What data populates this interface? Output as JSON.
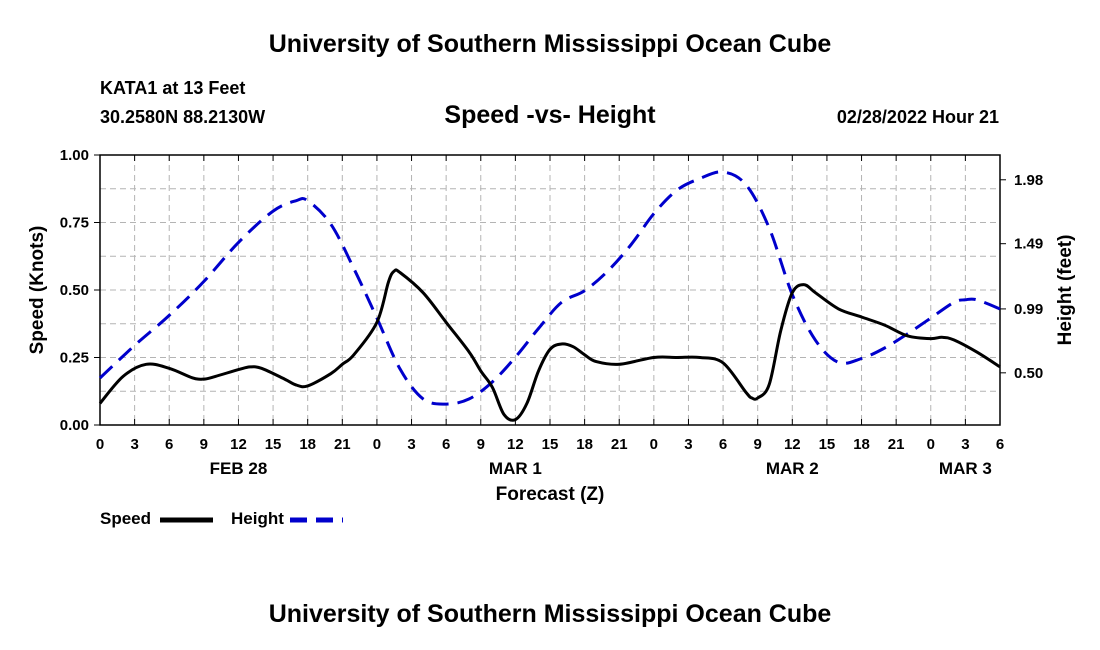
{
  "header": {
    "title": "University of Southern Mississippi Ocean Cube",
    "station": "KATA1 at 13 Feet",
    "coords": "30.2580N  88.2130W",
    "subtitle": "Speed -vs- Height",
    "datetime": "02/28/2022 Hour 21"
  },
  "footer": {
    "title": "University of Southern Mississippi Ocean Cube"
  },
  "colors": {
    "speed": "#000000",
    "height": "#0000cc",
    "grid": "#b4b4b4"
  },
  "chart_data": {
    "type": "line",
    "xlabel": "Forecast (Z)",
    "ylabel_left": "Speed (Knots)",
    "ylabel_right": "Height (feet)",
    "x_range_hours": [
      0,
      78
    ],
    "x_ticks": [
      {
        "h": 0,
        "label": "0"
      },
      {
        "h": 3,
        "label": "3"
      },
      {
        "h": 6,
        "label": "6"
      },
      {
        "h": 9,
        "label": "9"
      },
      {
        "h": 12,
        "label": "12"
      },
      {
        "h": 15,
        "label": "15"
      },
      {
        "h": 18,
        "label": "18"
      },
      {
        "h": 21,
        "label": "21"
      },
      {
        "h": 24,
        "label": "0"
      },
      {
        "h": 27,
        "label": "3"
      },
      {
        "h": 30,
        "label": "6"
      },
      {
        "h": 33,
        "label": "9"
      },
      {
        "h": 36,
        "label": "12"
      },
      {
        "h": 39,
        "label": "15"
      },
      {
        "h": 42,
        "label": "18"
      },
      {
        "h": 45,
        "label": "21"
      },
      {
        "h": 48,
        "label": "0"
      },
      {
        "h": 51,
        "label": "3"
      },
      {
        "h": 54,
        "label": "6"
      },
      {
        "h": 57,
        "label": "9"
      },
      {
        "h": 60,
        "label": "12"
      },
      {
        "h": 63,
        "label": "15"
      },
      {
        "h": 66,
        "label": "18"
      },
      {
        "h": 69,
        "label": "21"
      },
      {
        "h": 72,
        "label": "0"
      },
      {
        "h": 75,
        "label": "3"
      },
      {
        "h": 78,
        "label": "6"
      }
    ],
    "date_labels": [
      {
        "h": 12,
        "label": "FEB 28"
      },
      {
        "h": 36,
        "label": "MAR 1"
      },
      {
        "h": 60,
        "label": "MAR 2"
      },
      {
        "h": 75,
        "label": "MAR 3"
      }
    ],
    "y_left": {
      "min": 0,
      "max": 1,
      "ticks": [
        {
          "v": 0,
          "label": "0.00"
        },
        {
          "v": 0.25,
          "label": "0.25"
        },
        {
          "v": 0.5,
          "label": "0.50"
        },
        {
          "v": 0.75,
          "label": "0.75"
        },
        {
          "v": 1.0,
          "label": "1.00"
        }
      ]
    },
    "y_right": {
      "min": 0.1,
      "max": 2.17,
      "ticks": [
        {
          "v": 0.5,
          "label": "0.50"
        },
        {
          "v": 0.99,
          "label": "0.99"
        },
        {
          "v": 1.49,
          "label": "1.49"
        },
        {
          "v": 1.98,
          "label": "1.98"
        }
      ]
    },
    "series": [
      {
        "name": "Speed",
        "axis": "left",
        "style": "solid",
        "x": [
          0,
          2,
          4,
          6,
          8,
          9,
          10,
          12,
          13,
          14,
          16,
          17,
          18,
          20,
          21,
          22,
          24,
          25,
          25.5,
          26,
          28,
          30,
          32,
          33,
          34,
          35,
          36,
          37,
          38,
          39,
          40,
          41,
          42,
          43,
          45,
          48,
          50,
          52,
          54,
          56,
          56.5,
          57,
          58,
          59,
          60,
          61,
          62,
          64,
          66,
          68,
          70,
          72,
          73,
          74,
          76,
          78
        ],
        "values": [
          0.08,
          0.18,
          0.225,
          0.21,
          0.175,
          0.17,
          0.18,
          0.205,
          0.215,
          0.21,
          0.17,
          0.148,
          0.145,
          0.19,
          0.225,
          0.26,
          0.38,
          0.53,
          0.57,
          0.565,
          0.49,
          0.38,
          0.27,
          0.2,
          0.14,
          0.04,
          0.02,
          0.08,
          0.2,
          0.28,
          0.3,
          0.29,
          0.26,
          0.235,
          0.225,
          0.25,
          0.25,
          0.25,
          0.23,
          0.12,
          0.1,
          0.1,
          0.15,
          0.35,
          0.49,
          0.52,
          0.49,
          0.43,
          0.4,
          0.37,
          0.33,
          0.32,
          0.325,
          0.315,
          0.27,
          0.215
        ]
      },
      {
        "name": "Height",
        "axis": "right",
        "style": "dashed",
        "x": [
          0,
          3,
          6,
          9,
          12,
          15,
          17,
          18,
          20,
          22,
          24,
          26,
          28,
          30,
          32,
          34,
          36,
          38,
          40,
          42,
          44,
          46,
          48,
          50,
          52,
          54,
          56,
          58,
          60,
          62,
          64,
          66,
          68,
          70,
          72,
          74,
          75,
          76,
          78
        ],
        "values": [
          0.46,
          0.71,
          0.94,
          1.2,
          1.5,
          1.74,
          1.82,
          1.82,
          1.64,
          1.3,
          0.92,
          0.53,
          0.3,
          0.26,
          0.3,
          0.43,
          0.62,
          0.84,
          1.04,
          1.13,
          1.28,
          1.48,
          1.72,
          1.9,
          1.99,
          2.04,
          1.94,
          1.61,
          1.1,
          0.75,
          0.58,
          0.61,
          0.69,
          0.8,
          0.92,
          1.04,
          1.06,
          1.06,
          0.99
        ]
      }
    ]
  }
}
